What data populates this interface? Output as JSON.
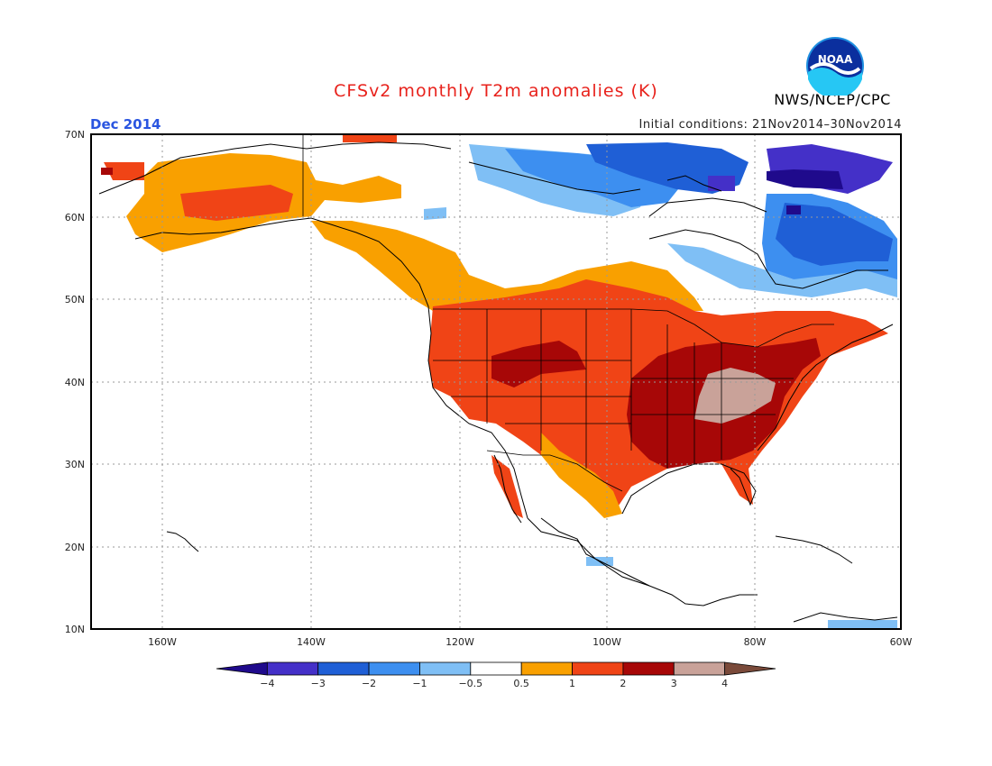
{
  "header": {
    "title": "CFSv2 monthly T2m anomalies (K)",
    "month": "Dec 2014",
    "initial_conditions": "Initial conditions: 21Nov2014–30Nov2014",
    "agency": "NWS/NCEP/CPC",
    "logo_text": "NOAA"
  },
  "map": {
    "lat_labels": [
      "70N",
      "60N",
      "50N",
      "40N",
      "30N",
      "20N",
      "10N"
    ],
    "lon_labels": [
      "160W",
      "140W",
      "120W",
      "100W",
      "80W",
      "60W"
    ]
  },
  "colorbar": {
    "labels": [
      "−4",
      "−3",
      "−2",
      "−1",
      "−0.5",
      "0.5",
      "1",
      "2",
      "3",
      "4"
    ],
    "colors": [
      "#1f0a8c",
      "#4430c8",
      "#1f5fd6",
      "#3d8ff0",
      "#7fbff5",
      "#ffffff",
      "#f9a000",
      "#f04416",
      "#a70707",
      "#c9a299",
      "#7a4a3a"
    ]
  },
  "colors": {
    "below_1": "#1f0a8c",
    "below_2": "#4430c8",
    "below_3": "#1f5fd6",
    "below_4": "#3d8ff0",
    "below_5": "#7fbff5",
    "above_05": "#f9a000",
    "above_1": "#f04416",
    "above_2": "#a70707",
    "above_3": "#c9a299"
  }
}
